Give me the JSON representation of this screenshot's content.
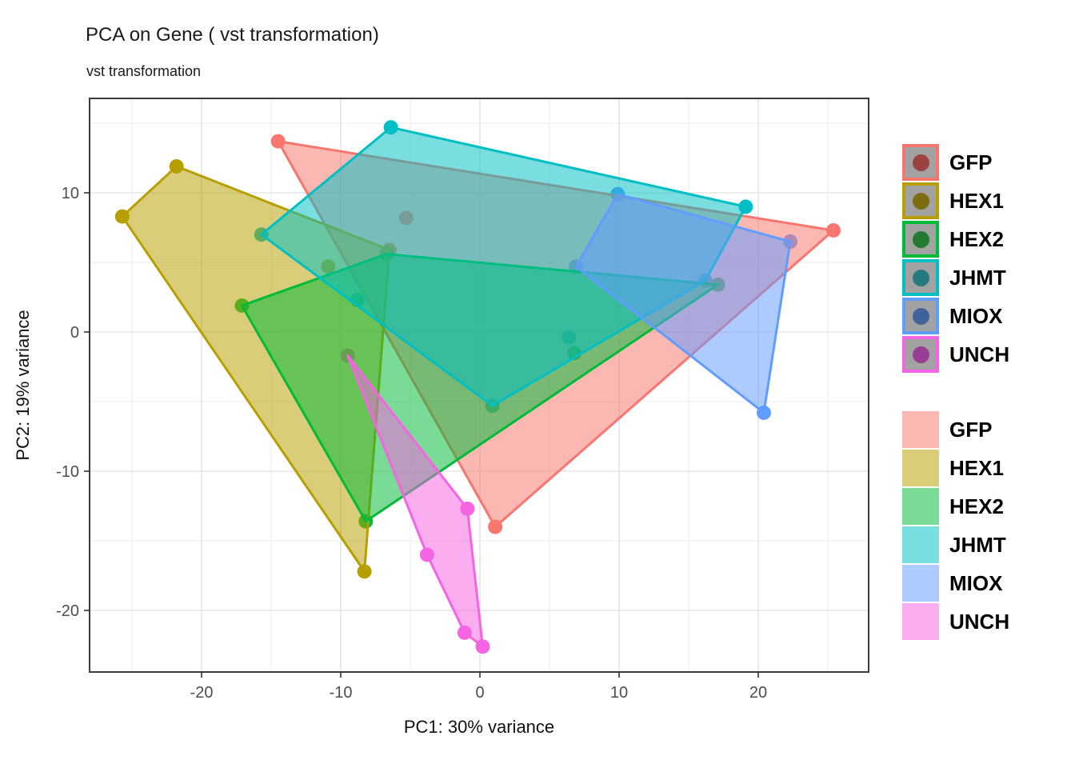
{
  "title": "PCA on Gene ( vst transformation)",
  "subtitle": "vst transformation",
  "chart_data": {
    "type": "scatter",
    "title": "PCA on Gene ( vst transformation)",
    "subtitle": "vst transformation",
    "xlabel": "PC1: 30% variance",
    "ylabel": "PC2: 19% variance",
    "xlim": [
      -28.0,
      27.9
    ],
    "ylim": [
      -24.4,
      16.8
    ],
    "x_ticks": [
      -20,
      -10,
      0,
      10,
      20
    ],
    "y_ticks": [
      10,
      0,
      -10,
      -20
    ],
    "x_minor_ticks": [
      -25,
      -15,
      -5,
      5,
      15,
      25
    ],
    "y_minor_ticks": [
      15,
      5,
      -5,
      -15
    ],
    "grid": true,
    "legend_position": "right",
    "point_radius_px": 9,
    "hull_fill_alpha": 0.52,
    "hull_stroke_width": 3,
    "groups": [
      {
        "name": "GFP",
        "color": "#F8766D",
        "legend_dot_color": "#9c4240",
        "points": [
          [
            -14.5,
            13.7
          ],
          [
            25.4,
            7.3
          ],
          [
            1.1,
            -14.0
          ],
          [
            -5.3,
            8.2
          ]
        ],
        "hull": [
          [
            -14.5,
            13.7
          ],
          [
            25.4,
            7.3
          ],
          [
            1.1,
            -14.0
          ]
        ]
      },
      {
        "name": "HEX1",
        "color": "#B79F00",
        "legend_dot_color": "#7e6c10",
        "points": [
          [
            -25.7,
            8.3
          ],
          [
            -21.8,
            11.9
          ],
          [
            -6.5,
            5.9
          ],
          [
            -10.9,
            4.7
          ],
          [
            -8.3,
            -17.2
          ]
        ],
        "hull": [
          [
            -25.7,
            8.3
          ],
          [
            -21.8,
            11.9
          ],
          [
            -6.5,
            5.9
          ],
          [
            -8.3,
            -17.2
          ]
        ]
      },
      {
        "name": "HEX2",
        "color": "#00BA38",
        "legend_dot_color": "#217c2e",
        "points": [
          [
            -17.1,
            1.9
          ],
          [
            -6.7,
            5.6
          ],
          [
            17.1,
            3.4
          ],
          [
            6.8,
            -1.5
          ],
          [
            -8.2,
            -13.6
          ]
        ],
        "hull": [
          [
            -17.1,
            1.9
          ],
          [
            -6.7,
            5.6
          ],
          [
            17.1,
            3.4
          ],
          [
            -8.2,
            -13.6
          ]
        ]
      },
      {
        "name": "JHMT",
        "color": "#00BFC4",
        "legend_dot_color": "#26797e",
        "points": [
          [
            -15.7,
            7.0
          ],
          [
            -6.4,
            14.7
          ],
          [
            19.1,
            9.0
          ],
          [
            16.2,
            3.7
          ],
          [
            0.9,
            -5.3
          ],
          [
            -8.8,
            2.3
          ],
          [
            6.4,
            -0.4
          ]
        ],
        "hull": [
          [
            -15.7,
            7.0
          ],
          [
            -6.4,
            14.7
          ],
          [
            19.1,
            9.0
          ],
          [
            16.2,
            3.7
          ],
          [
            0.9,
            -5.3
          ]
        ]
      },
      {
        "name": "MIOX",
        "color": "#619CFF",
        "legend_dot_color": "#41639d",
        "points": [
          [
            9.9,
            9.9
          ],
          [
            22.3,
            6.5
          ],
          [
            20.4,
            -5.8
          ],
          [
            6.9,
            4.7
          ]
        ],
        "hull": [
          [
            9.9,
            9.9
          ],
          [
            22.3,
            6.5
          ],
          [
            20.4,
            -5.8
          ],
          [
            6.9,
            4.7
          ]
        ]
      },
      {
        "name": "UNCH",
        "color": "#F564E3",
        "legend_dot_color": "#9a3d95",
        "points": [
          [
            -9.5,
            -1.7
          ],
          [
            -0.9,
            -12.7
          ],
          [
            -3.8,
            -16.0
          ],
          [
            -1.1,
            -21.6
          ],
          [
            0.2,
            -22.6
          ]
        ],
        "hull": [
          [
            -9.5,
            -1.7
          ],
          [
            -0.9,
            -12.7
          ],
          [
            0.2,
            -22.6
          ],
          [
            -1.1,
            -21.6
          ],
          [
            -3.8,
            -16.0
          ]
        ]
      }
    ]
  },
  "style_colors": {
    "grid_major": "#e5e5e5",
    "grid_minor": "#f1f1f1",
    "panel_border": "#3c3c3c",
    "tick_label": "#4d4d4d",
    "axis_title": "#111111",
    "legend_key_background": "#a2a2a2"
  }
}
